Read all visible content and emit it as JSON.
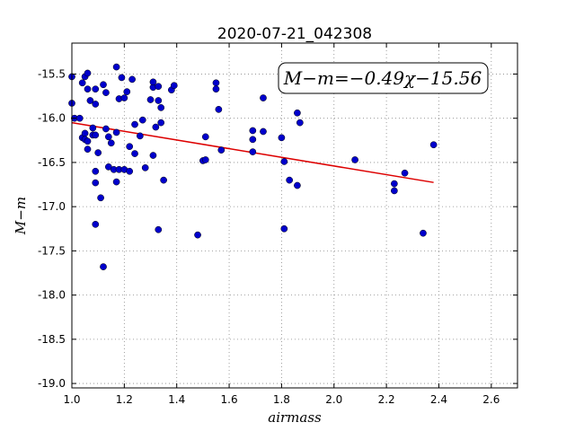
{
  "chart_data": {
    "type": "scatter",
    "title": "2020-07-21_042308",
    "xlabel": "airmass",
    "ylabel": "M−m",
    "xlim": [
      1.0,
      2.7
    ],
    "ylim": [
      -19.05,
      -15.15
    ],
    "x_ticks": [
      1.0,
      1.2,
      1.4,
      1.6,
      1.8,
      2.0,
      2.2,
      2.4,
      2.6
    ],
    "x_tick_labels": [
      "1.0",
      "1.2",
      "1.4",
      "1.6",
      "1.8",
      "2.0",
      "2.2",
      "2.4",
      "2.6"
    ],
    "y_ticks": [
      -15.5,
      -16.0,
      -16.5,
      -17.0,
      -17.5,
      -18.0,
      -18.5,
      -19.0
    ],
    "y_tick_labels": [
      "-15.5",
      "-16.0",
      "-16.5",
      "-17.0",
      "-17.5",
      "-18.0",
      "-18.5",
      "-19.0"
    ],
    "grid": true,
    "annotation": "M−m=−0.49χ−15.56",
    "colors": {
      "points": "#0000cc",
      "fit": "#dd0000",
      "grid": "#888888"
    },
    "fit_line": {
      "slope": -0.49,
      "intercept": -15.56,
      "x_range": [
        1.0,
        2.38
      ]
    },
    "series": [
      {
        "points": [
          [
            1.0,
            -15.53
          ],
          [
            1.0,
            -15.83
          ],
          [
            1.01,
            -16.0
          ],
          [
            1.03,
            -16.0
          ],
          [
            1.04,
            -16.22
          ],
          [
            1.04,
            -15.6
          ],
          [
            1.05,
            -15.53
          ],
          [
            1.05,
            -16.17
          ],
          [
            1.05,
            -16.24
          ],
          [
            1.06,
            -15.49
          ],
          [
            1.06,
            -16.35
          ],
          [
            1.06,
            -16.26
          ],
          [
            1.06,
            -15.67
          ],
          [
            1.07,
            -15.8
          ],
          [
            1.08,
            -16.11
          ],
          [
            1.08,
            -16.19
          ],
          [
            1.09,
            -15.67
          ],
          [
            1.09,
            -15.84
          ],
          [
            1.09,
            -16.19
          ],
          [
            1.09,
            -16.6
          ],
          [
            1.09,
            -16.73
          ],
          [
            1.1,
            -16.39
          ],
          [
            1.09,
            -17.2
          ],
          [
            1.11,
            -16.9
          ],
          [
            1.12,
            -17.68
          ],
          [
            1.12,
            -15.62
          ],
          [
            1.13,
            -15.71
          ],
          [
            1.13,
            -16.12
          ],
          [
            1.14,
            -16.21
          ],
          [
            1.14,
            -16.55
          ],
          [
            1.15,
            -16.28
          ],
          [
            1.16,
            -16.58
          ],
          [
            1.17,
            -16.16
          ],
          [
            1.17,
            -15.42
          ],
          [
            1.17,
            -16.72
          ],
          [
            1.18,
            -15.78
          ],
          [
            1.18,
            -16.58
          ],
          [
            1.19,
            -15.54
          ],
          [
            1.2,
            -15.77
          ],
          [
            1.2,
            -16.58
          ],
          [
            1.21,
            -15.7
          ],
          [
            1.22,
            -16.6
          ],
          [
            1.22,
            -16.32
          ],
          [
            1.23,
            -15.56
          ],
          [
            1.24,
            -16.4
          ],
          [
            1.24,
            -16.07
          ],
          [
            1.26,
            -16.2
          ],
          [
            1.27,
            -16.02
          ],
          [
            1.28,
            -16.56
          ],
          [
            1.3,
            -15.79
          ],
          [
            1.31,
            -16.42
          ],
          [
            1.31,
            -15.65
          ],
          [
            1.31,
            -15.59
          ],
          [
            1.32,
            -16.1
          ],
          [
            1.33,
            -15.8
          ],
          [
            1.33,
            -15.64
          ],
          [
            1.33,
            -17.26
          ],
          [
            1.34,
            -16.05
          ],
          [
            1.34,
            -15.88
          ],
          [
            1.35,
            -16.7
          ],
          [
            1.38,
            -15.68
          ],
          [
            1.39,
            -15.63
          ],
          [
            1.48,
            -17.32
          ],
          [
            1.5,
            -16.48
          ],
          [
            1.51,
            -16.21
          ],
          [
            1.51,
            -16.47
          ],
          [
            1.55,
            -15.6
          ],
          [
            1.55,
            -15.67
          ],
          [
            1.56,
            -15.9
          ],
          [
            1.57,
            -16.36
          ],
          [
            1.69,
            -16.14
          ],
          [
            1.69,
            -16.38
          ],
          [
            1.69,
            -16.24
          ],
          [
            1.73,
            -16.15
          ],
          [
            1.73,
            -15.77
          ],
          [
            1.8,
            -16.22
          ],
          [
            1.81,
            -16.49
          ],
          [
            1.81,
            -17.25
          ],
          [
            1.83,
            -16.7
          ],
          [
            1.86,
            -15.94
          ],
          [
            1.86,
            -16.76
          ],
          [
            1.87,
            -16.05
          ],
          [
            2.08,
            -16.47
          ],
          [
            2.23,
            -16.74
          ],
          [
            2.23,
            -16.82
          ],
          [
            2.27,
            -16.62
          ],
          [
            2.34,
            -17.3
          ],
          [
            2.38,
            -16.3
          ]
        ]
      }
    ]
  }
}
